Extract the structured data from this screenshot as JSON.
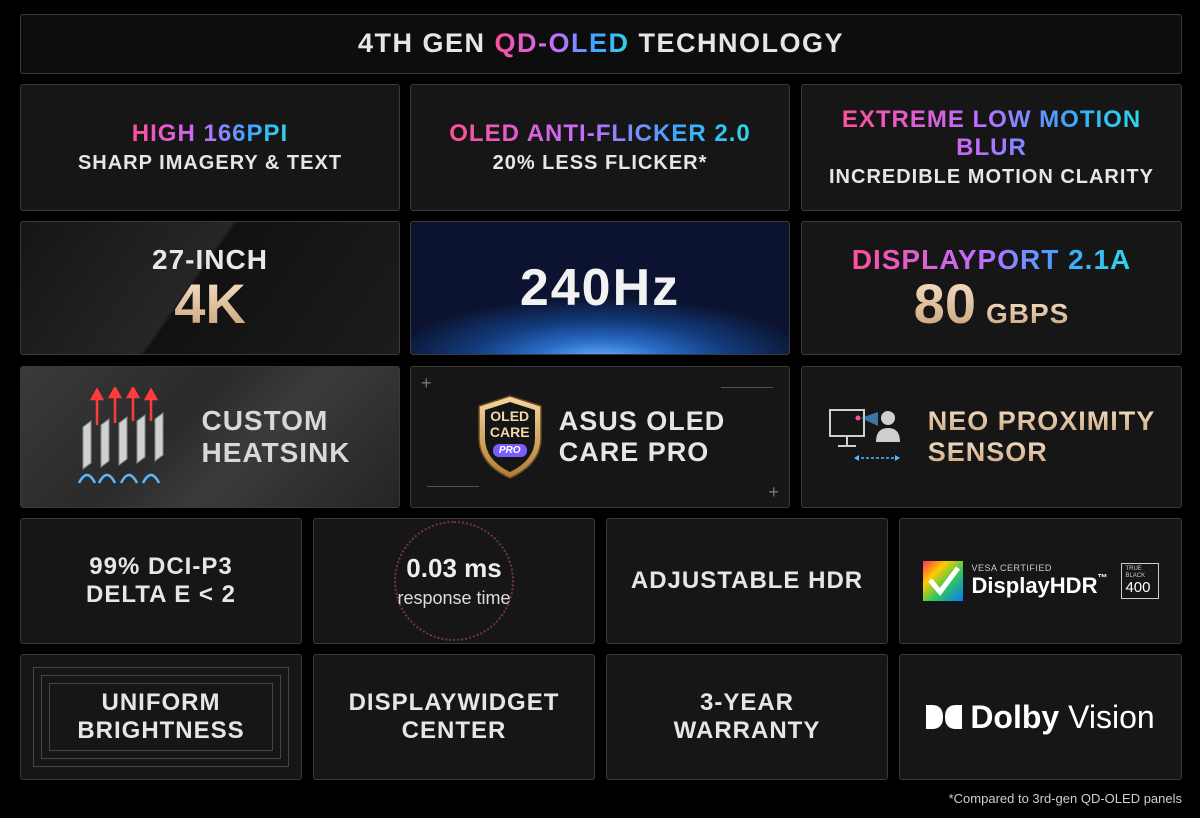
{
  "title": {
    "prefix": "4TH GEN ",
    "highlight": "QD-OLED",
    "suffix": " TECHNOLOGY"
  },
  "row1": [
    {
      "main": "HIGH 166PPI",
      "sub": "SHARP IMAGERY & TEXT"
    },
    {
      "main": "OLED ANTI-FLICKER 2.0",
      "sub": "20% LESS FLICKER*"
    },
    {
      "main": "EXTREME LOW MOTION BLUR",
      "sub": "INCREDIBLE MOTION CLARITY"
    }
  ],
  "row2": {
    "size": {
      "top": "27-INCH",
      "big": "4K"
    },
    "refresh": {
      "big": "240Hz"
    },
    "dp": {
      "top": "DISPLAYPORT 2.1a",
      "big": "80",
      "unit": "GBPS"
    }
  },
  "row3": {
    "heatsink": {
      "line1": "CUSTOM",
      "line2": "HEATSINK"
    },
    "oledcare": {
      "badge1": "OLED",
      "badge2": "CARE",
      "badge3": "PRO",
      "line1": "ASUS OLED",
      "line2": "CARE PRO"
    },
    "proximity": {
      "line1": "NEO PROXIMITY",
      "line2": "SENSOR"
    }
  },
  "row4": {
    "color": {
      "line1": "99% DCI-P3",
      "line2": "DELTA E < 2"
    },
    "response": {
      "value": "0.03 ms",
      "label": "response time"
    },
    "hdr": {
      "label": "ADJUSTABLE HDR"
    },
    "displayhdr": {
      "certified": "VESA CERTIFIED",
      "brand": "DisplayHDR",
      "tm": "™",
      "tb1": "TRUE",
      "tb2": "BLACK",
      "level": "400"
    }
  },
  "row5": {
    "uniform": {
      "line1": "UNIFORM",
      "line2": "BRIGHTNESS"
    },
    "widget": {
      "line1": "DISPLAYWIDGET",
      "line2": "CENTER"
    },
    "warranty": {
      "line1": "3-YEAR",
      "line2": "WARRANTY"
    },
    "dolby": {
      "brand1": "Dolby",
      "brand2": "Vision"
    }
  },
  "footnote": "*Compared to 3rd-gen QD-OLED panels",
  "colors": {
    "gradient_start": "#ff4f9a",
    "gradient_mid": "#c46cff",
    "gradient_end": "#2ed6e8",
    "gold": "#e8c9a4"
  }
}
